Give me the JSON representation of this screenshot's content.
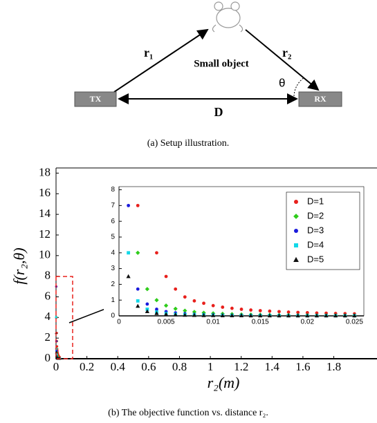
{
  "diagram": {
    "tx": "TX",
    "rx": "RX",
    "object": "Small object",
    "r1": "r₁",
    "r2": "r₂",
    "d": "D",
    "angle": "θ"
  },
  "captions": [
    "(a) Setup illustration.",
    "(b) The objective function vs. distance r₂."
  ],
  "chart_data": [
    {
      "type": "scatter",
      "xlabel": "r₂(m)",
      "ylabel": "f(r₂,θ)",
      "xlim": [
        0,
        2.08
      ],
      "ylim": [
        0,
        18.5
      ],
      "xticks": [
        0,
        0.2,
        0.4,
        0.6,
        0.8,
        1,
        1.2,
        1.4,
        1.6,
        1.8
      ],
      "yticks": [
        0,
        2,
        4,
        6,
        8,
        10,
        12,
        14,
        16,
        18
      ]
    },
    {
      "type": "scatter",
      "xlim": [
        0,
        0.026
      ],
      "ylim": [
        0,
        8.2
      ],
      "xticks": [
        0,
        0.005,
        0.01,
        0.015,
        0.02,
        0.025
      ],
      "yticks": [
        0,
        1,
        2,
        3,
        4,
        5,
        6,
        7,
        8
      ],
      "legend": "upper right",
      "series": [
        {
          "name": "D=1",
          "color": "#e8201c",
          "marker": "circle",
          "x": [
            0.002,
            0.004,
            0.005,
            0.006,
            0.007,
            0.008,
            0.009,
            0.01,
            0.011,
            0.012,
            0.013,
            0.014,
            0.015,
            0.016,
            0.017,
            0.018,
            0.019,
            0.02,
            0.021,
            0.022,
            0.023,
            0.024,
            0.025
          ],
          "values": [
            7,
            4,
            2.5,
            1.7,
            1.2,
            0.95,
            0.8,
            0.65,
            0.55,
            0.48,
            0.42,
            0.37,
            0.33,
            0.3,
            0.27,
            0.24,
            0.22,
            0.2,
            0.18,
            0.17,
            0.15,
            0.14,
            0.13
          ]
        },
        {
          "name": "D=2",
          "color": "#2ecc1a",
          "marker": "diamond",
          "x": [
            0.002,
            0.003,
            0.004,
            0.005,
            0.006,
            0.007,
            0.008,
            0.009,
            0.01,
            0.011,
            0.012,
            0.013,
            0.014,
            0.015,
            0.016,
            0.017,
            0.018,
            0.019,
            0.02,
            0.021,
            0.022,
            0.023,
            0.024,
            0.025
          ],
          "values": [
            4,
            1.7,
            1,
            0.65,
            0.45,
            0.33,
            0.25,
            0.2,
            0.16,
            0.13,
            0.11,
            0.09,
            0.08,
            0.07,
            0.06,
            0.05,
            0.05,
            0.04,
            0.04,
            0.03,
            0.03,
            0.03,
            0.02,
            0.02
          ]
        },
        {
          "name": "D=3",
          "color": "#1a1adc",
          "marker": "circle",
          "x": [
            0.001,
            0.002,
            0.003,
            0.004,
            0.005,
            0.006,
            0.007,
            0.008,
            0.009,
            0.01,
            0.011,
            0.012,
            0.013,
            0.014,
            0.015,
            0.016,
            0.017,
            0.018,
            0.019,
            0.02,
            0.021,
            0.022,
            0.023,
            0.024,
            0.025
          ],
          "values": [
            7,
            1.7,
            0.75,
            0.42,
            0.27,
            0.19,
            0.14,
            0.1,
            0.08,
            0.07,
            0.05,
            0.04,
            0.04,
            0.03,
            0.03,
            0.02,
            0.02,
            0.02,
            0.02,
            0.01,
            0.01,
            0.01,
            0.01,
            0.01,
            0.01
          ]
        },
        {
          "name": "D=4",
          "color": "#12d8e8",
          "marker": "square",
          "x": [
            0.001,
            0.002,
            0.003,
            0.004,
            0.005,
            0.006,
            0.007,
            0.008,
            0.009,
            0.01,
            0.011,
            0.012,
            0.013,
            0.014,
            0.015,
            0.016,
            0.017,
            0.018,
            0.019,
            0.02,
            0.021,
            0.022,
            0.023,
            0.024,
            0.025
          ],
          "values": [
            4,
            0.95,
            0.42,
            0.24,
            0.15,
            0.1,
            0.08,
            0.06,
            0.05,
            0.04,
            0.03,
            0.03,
            0.02,
            0.02,
            0.02,
            0.02,
            0.01,
            0.01,
            0.01,
            0.01,
            0.01,
            0.01,
            0.01,
            0.01,
            0.01
          ]
        },
        {
          "name": "D=5",
          "color": "#111111",
          "marker": "triangle",
          "x": [
            0.001,
            0.002,
            0.003,
            0.004,
            0.005,
            0.006,
            0.007,
            0.008,
            0.009,
            0.01,
            0.011,
            0.012,
            0.013,
            0.014,
            0.015,
            0.016,
            0.017,
            0.018,
            0.019,
            0.02,
            0.021,
            0.022,
            0.023,
            0.024,
            0.025
          ],
          "values": [
            2.5,
            0.62,
            0.28,
            0.16,
            0.1,
            0.07,
            0.05,
            0.04,
            0.03,
            0.03,
            0.02,
            0.02,
            0.02,
            0.01,
            0.01,
            0.01,
            0.01,
            0.01,
            0.01,
            0.01,
            0.01,
            0.01,
            0.01,
            0.01,
            0.01
          ]
        }
      ]
    }
  ]
}
